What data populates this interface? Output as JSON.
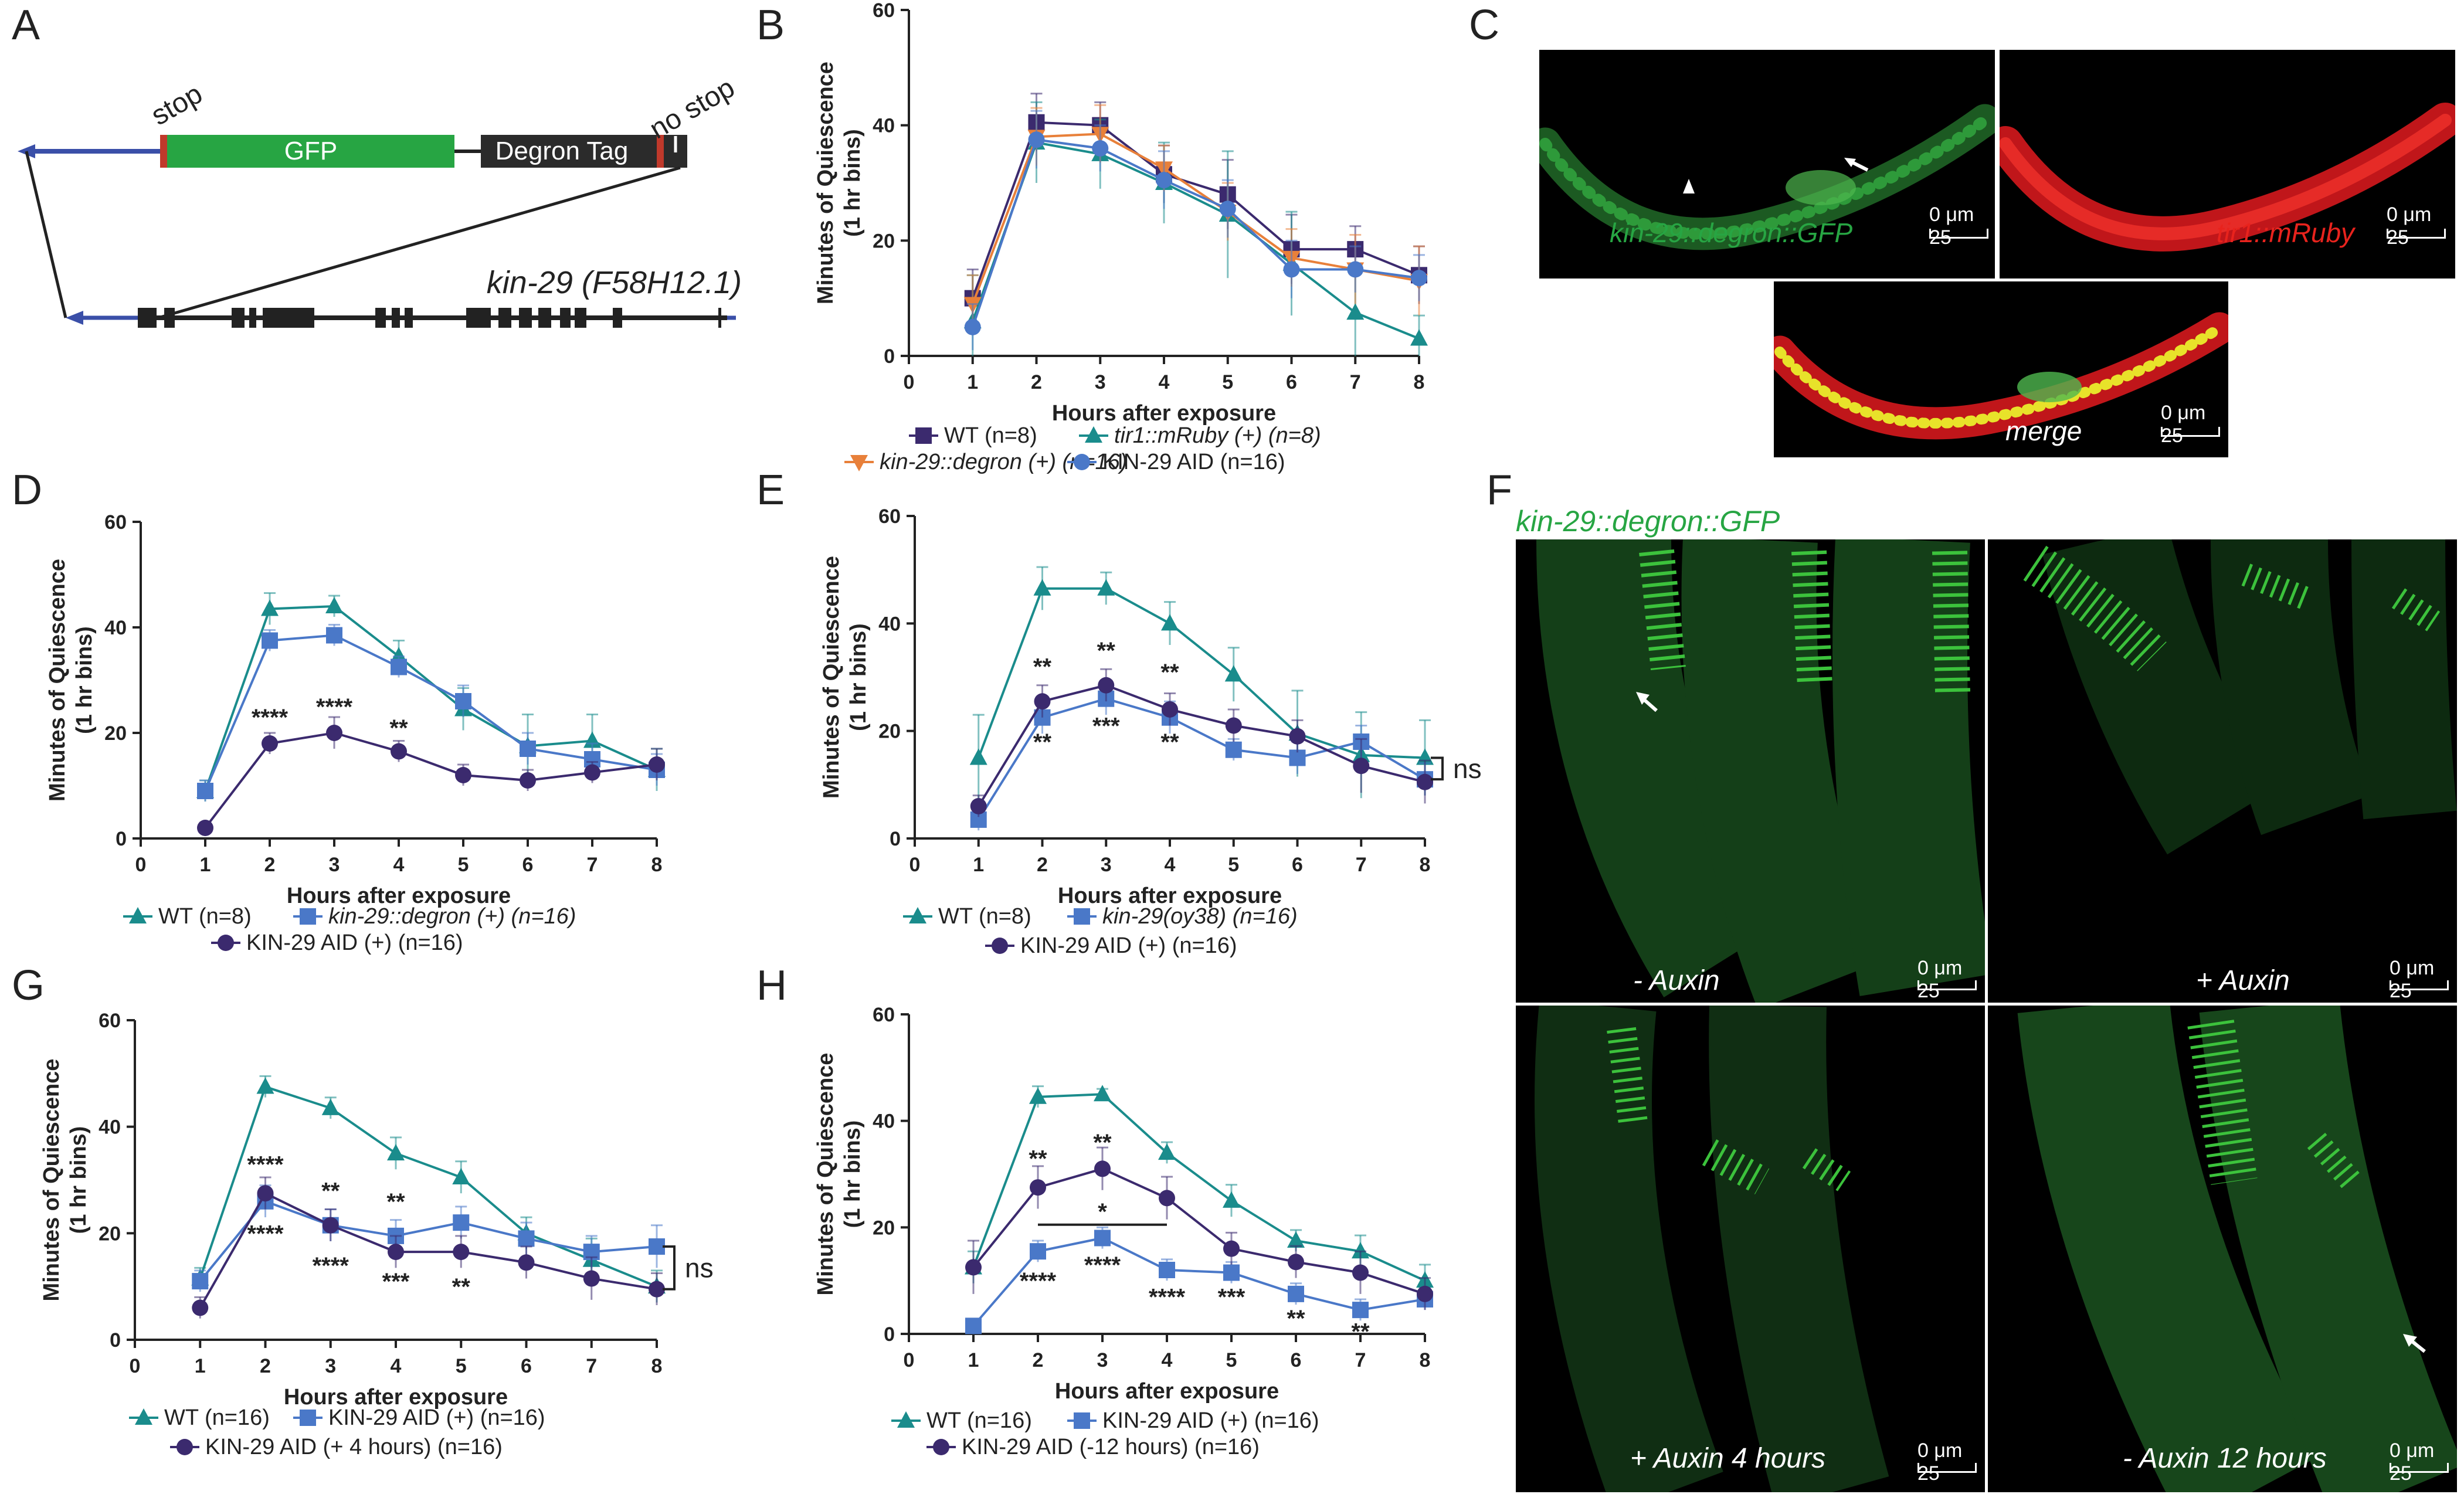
{
  "panels": {
    "A": "A",
    "B": "B",
    "C": "C",
    "D": "D",
    "E": "E",
    "F": "F",
    "G": "G",
    "H": "H"
  },
  "colors": {
    "wt": "#1a8c8c",
    "degron": "#e8803a",
    "aid": "#4a78c8",
    "purple": "#3b2a6e",
    "kin_err": "#6fc0df",
    "aid_err": "#c7a8d8",
    "wt_err": "#7fd6d6",
    "gfp": "#27a543",
    "rfp": "#e8231d"
  },
  "panelA": {
    "stop_label": "stop",
    "nostop_label": "no stop",
    "gfp_label": "GFP",
    "degron_label": "Degron Tag",
    "gene_label": "kin-29 (F58H12.1)"
  },
  "axes": {
    "ylabel_line1": "Minutes of Quiescence",
    "ylabel_line2": "(1 hr bins)",
    "xlabel": "Hours after exposure"
  },
  "panelC": {
    "label1": "kin-29::degron::GFP",
    "label2": "tir1::mRuby",
    "label3": "merge",
    "scale": "0 μm 25"
  },
  "panelF": {
    "title": "kin-29::degron::GFP",
    "labels": [
      "- Auxin",
      "+ Auxin",
      "+ Auxin 4 hours",
      "- Auxin 12 hours"
    ],
    "scale": "0 μm 25"
  },
  "chart_data": [
    {
      "panel": "B",
      "type": "line",
      "x": [
        1,
        2,
        3,
        4,
        5,
        6,
        7,
        8
      ],
      "ylim": [
        0,
        60
      ],
      "yticks": [
        0,
        20,
        40,
        60
      ],
      "xticks": [
        0,
        1,
        2,
        3,
        4,
        5,
        6,
        7,
        8
      ],
      "series": [
        {
          "name": "WT (n=8)",
          "marker": "square",
          "color": "#3b2a6e",
          "values": [
            10,
            40.5,
            40,
            31.5,
            28,
            18.5,
            18.5,
            14
          ],
          "err": [
            5,
            5,
            4,
            5,
            6,
            6,
            4,
            5
          ]
        },
        {
          "name": "tir1::mRuby (+) (n=8)",
          "marker": "triangle",
          "color": "#1a8c8c",
          "values": [
            6,
            37,
            35,
            30,
            24.5,
            16,
            7.5,
            3
          ],
          "err": [
            8,
            7,
            6,
            7,
            11,
            9,
            8,
            4
          ]
        },
        {
          "name": "kin-29::degron (+) (n=16)",
          "marker": "triangle-down",
          "color": "#e8803a",
          "values": [
            9,
            38,
            38.5,
            32.5,
            25,
            17,
            15,
            13
          ],
          "err": [
            5,
            5,
            5,
            4,
            5,
            5,
            6,
            6
          ]
        },
        {
          "name": "KIN-29 AID (n=16)",
          "marker": "circle",
          "color": "#4a78c8",
          "values": [
            5,
            37.5,
            36,
            30.5,
            25.5,
            15,
            15,
            13.5
          ],
          "err": [
            4,
            5,
            4,
            5,
            5,
            5,
            4,
            4
          ]
        }
      ],
      "legend": [
        [
          "WT (n=8)",
          "tir1::mRuby (+) (n=8)"
        ],
        [
          "kin-29::degron (+) (n=16)",
          "KIN-29 AID (n=16)"
        ]
      ]
    },
    {
      "panel": "D",
      "type": "line",
      "x": [
        1,
        2,
        3,
        4,
        5,
        6,
        7,
        8
      ],
      "ylim": [
        0,
        60
      ],
      "yticks": [
        0,
        20,
        40,
        60
      ],
      "xticks": [
        0,
        1,
        2,
        3,
        4,
        5,
        6,
        7,
        8
      ],
      "series": [
        {
          "name": "WT (n=8)",
          "marker": "triangle",
          "color": "#1a8c8c",
          "values": [
            9,
            43.5,
            44,
            34.5,
            24.5,
            17.5,
            18.5,
            13
          ],
          "err": [
            2,
            3,
            2,
            3,
            4,
            6,
            5,
            4
          ]
        },
        {
          "name": "kin-29::degron (+) (n=16)",
          "marker": "square",
          "color": "#4a78c8",
          "values": [
            9,
            37.5,
            38.5,
            32.5,
            26,
            17,
            15,
            13
          ],
          "err": [
            2,
            2,
            2,
            2,
            3,
            3,
            3,
            3
          ]
        },
        {
          "name": "KIN-29 AID (+) (n=16)",
          "marker": "circle",
          "color": "#3b2a6e",
          "values": [
            2,
            18,
            20,
            16.5,
            12,
            11,
            12.5,
            14
          ],
          "err": [
            1,
            2,
            3,
            2,
            2,
            2,
            2,
            3
          ]
        }
      ],
      "annotations": [
        {
          "x": 2,
          "y": 23,
          "text": "****"
        },
        {
          "x": 3,
          "y": 25,
          "text": "****"
        },
        {
          "x": 4,
          "y": 21,
          "text": "**"
        }
      ],
      "legend": [
        [
          "WT (n=8)",
          "kin-29::degron (+) (n=16)"
        ],
        [
          "KIN-29 AID (+) (n=16)"
        ]
      ]
    },
    {
      "panel": "E",
      "type": "line",
      "x": [
        1,
        2,
        3,
        4,
        5,
        6,
        7,
        8
      ],
      "ylim": [
        0,
        60
      ],
      "yticks": [
        0,
        20,
        40,
        60
      ],
      "xticks": [
        0,
        1,
        2,
        3,
        4,
        5,
        6,
        7,
        8
      ],
      "series": [
        {
          "name": "WT (n=8)",
          "marker": "triangle",
          "color": "#1a8c8c",
          "values": [
            15,
            46.5,
            46.5,
            40,
            30.5,
            19.5,
            15.5,
            15
          ],
          "err": [
            8,
            4,
            3,
            4,
            5,
            8,
            8,
            7
          ]
        },
        {
          "name": "kin-29(oy38) (n=16)",
          "marker": "square",
          "color": "#4a78c8",
          "values": [
            3.5,
            22.5,
            26,
            22.5,
            16.5,
            15,
            18,
            11
          ],
          "err": [
            2,
            3,
            3,
            3,
            2,
            3,
            3,
            3
          ]
        },
        {
          "name": "KIN-29 AID (+) (n=16)",
          "marker": "circle",
          "color": "#3b2a6e",
          "values": [
            6,
            25.5,
            28.5,
            24,
            21,
            19,
            13.5,
            10.5
          ],
          "err": [
            2,
            3,
            3,
            3,
            3,
            3,
            5,
            4
          ]
        }
      ],
      "annotations": [
        {
          "x": 2,
          "y": 32,
          "text": "**"
        },
        {
          "x": 3,
          "y": 35,
          "text": "**"
        },
        {
          "x": 4,
          "y": 31,
          "text": "**"
        },
        {
          "x": 2,
          "y": 18,
          "text": "**"
        },
        {
          "x": 3,
          "y": 21,
          "text": "***"
        },
        {
          "x": 4,
          "y": 18,
          "text": "**"
        }
      ],
      "bracket": {
        "x": 8,
        "y1": 15,
        "y2": 11,
        "text": "ns"
      },
      "legend": [
        [
          "WT (n=8)",
          "kin-29(oy38) (n=16)"
        ],
        [
          "KIN-29 AID (+) (n=16)"
        ]
      ]
    },
    {
      "panel": "G",
      "type": "line",
      "x": [
        1,
        2,
        3,
        4,
        5,
        6,
        7,
        8
      ],
      "ylim": [
        0,
        60
      ],
      "yticks": [
        0,
        20,
        40,
        60
      ],
      "xticks": [
        0,
        1,
        2,
        3,
        4,
        5,
        6,
        7,
        8
      ],
      "series": [
        {
          "name": "WT (n=16)",
          "marker": "triangle",
          "color": "#1a8c8c",
          "values": [
            11.5,
            47.5,
            43.5,
            35,
            30.5,
            20,
            15,
            10
          ],
          "err": [
            2,
            2,
            2,
            3,
            3,
            3,
            4,
            3
          ]
        },
        {
          "name": "KIN-29 AID (+) (n=16)",
          "marker": "square",
          "color": "#4a78c8",
          "values": [
            11,
            26,
            21.5,
            19.5,
            22,
            19,
            16.5,
            17.5
          ],
          "err": [
            2,
            3,
            3,
            3,
            3,
            3,
            3,
            4
          ]
        },
        {
          "name": "KIN-29 AID (+ 4 hours) (n=16)",
          "marker": "circle",
          "color": "#3b2a6e",
          "values": [
            6,
            27.5,
            21.5,
            16.5,
            16.5,
            14.5,
            11.5,
            9.5
          ],
          "err": [
            2,
            3,
            3,
            3,
            3,
            3,
            4,
            3
          ]
        }
      ],
      "annotations": [
        {
          "x": 2,
          "y": 33,
          "text": "****"
        },
        {
          "x": 3,
          "y": 28,
          "text": "**"
        },
        {
          "x": 4,
          "y": 26,
          "text": "**"
        },
        {
          "x": 2,
          "y": 20,
          "text": "****"
        },
        {
          "x": 3,
          "y": 14,
          "text": "****"
        },
        {
          "x": 4,
          "y": 11,
          "text": "***"
        },
        {
          "x": 5,
          "y": 10,
          "text": "**"
        }
      ],
      "bracket": {
        "x": 8,
        "y1": 17.5,
        "y2": 9.5,
        "text": "ns"
      },
      "legend": [
        [
          "WT (n=16)",
          "KIN-29 AID (+) (n=16)"
        ],
        [
          "KIN-29 AID (+ 4 hours) (n=16)"
        ]
      ]
    },
    {
      "panel": "H",
      "type": "line",
      "x": [
        1,
        2,
        3,
        4,
        5,
        6,
        7,
        8
      ],
      "ylim": [
        0,
        60
      ],
      "yticks": [
        0,
        20,
        40,
        60
      ],
      "xticks": [
        0,
        1,
        2,
        3,
        4,
        5,
        6,
        7,
        8
      ],
      "series": [
        {
          "name": "WT (n=16)",
          "marker": "triangle",
          "color": "#1a8c8c",
          "values": [
            12.5,
            44.5,
            45,
            34,
            25,
            17.5,
            15.5,
            10
          ],
          "err": [
            3,
            2,
            1,
            2,
            3,
            2,
            3,
            3
          ]
        },
        {
          "name": "KIN-29 AID (+) (n=16)",
          "marker": "square",
          "color": "#4a78c8",
          "values": [
            1.5,
            15.5,
            18,
            12,
            11.5,
            7.5,
            4.5,
            6.5
          ],
          "err": [
            1,
            2,
            2,
            2,
            2,
            2,
            2,
            2
          ]
        },
        {
          "name": "KIN-29 AID (-12 hours) (n=16)",
          "marker": "circle",
          "color": "#3b2a6e",
          "values": [
            12.5,
            27.5,
            31,
            25.5,
            16,
            13.5,
            11.5,
            7.5
          ],
          "err": [
            5,
            4,
            4,
            4,
            3,
            3,
            4,
            3
          ]
        }
      ],
      "annotations": [
        {
          "x": 2,
          "y": 33,
          "text": "**"
        },
        {
          "x": 3,
          "y": 36,
          "text": "**"
        },
        {
          "x": 3,
          "y": 23,
          "text": "*"
        },
        {
          "x": 2,
          "y": 10,
          "text": "****"
        },
        {
          "x": 3,
          "y": 13,
          "text": "****"
        },
        {
          "x": 4,
          "y": 7,
          "text": "****"
        },
        {
          "x": 5,
          "y": 7,
          "text": "***"
        },
        {
          "x": 6,
          "y": 3,
          "text": "**"
        },
        {
          "x": 7,
          "y": 0.5,
          "text": "**"
        }
      ],
      "hline": {
        "x1": 2,
        "x2": 4,
        "y": 20.5
      },
      "legend": [
        [
          "WT (n=16)",
          "KIN-29 AID (+) (n=16)"
        ],
        [
          "KIN-29 AID (-12 hours) (n=16)"
        ]
      ]
    }
  ]
}
